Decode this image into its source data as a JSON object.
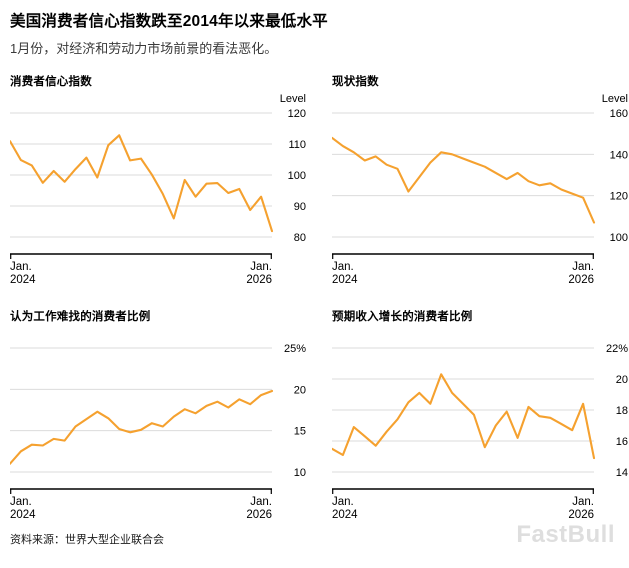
{
  "header": {
    "title": "美国消费者信心指数跌至2014年以来最低水平",
    "subtitle": "1月份，对经济和劳动力市场前景的看法恶化。"
  },
  "footer": {
    "source": "资料来源：世界大型企业联合会",
    "watermark": "FastBull"
  },
  "colors": {
    "line": "#F5A12F",
    "grid": "#DBDBDB",
    "axis": "#000000",
    "watermark": "#DEDEDE"
  },
  "chart_data": [
    {
      "type": "line",
      "title": "消费者信心指数",
      "ylabel": "Level",
      "ylim": [
        80,
        120
      ],
      "yticks": [
        120,
        110,
        100,
        90,
        80
      ],
      "ytick_labels": [
        "120",
        "110",
        "100",
        "90",
        "80"
      ],
      "x_start_label": [
        "Jan.",
        "2024"
      ],
      "x_end_label": [
        "Jan.",
        "2026"
      ],
      "values": [
        110.9,
        104.8,
        103.1,
        97.5,
        101.3,
        97.8,
        101.9,
        105.6,
        99.2,
        109.6,
        112.8,
        104.7,
        105.3,
        100.1,
        93.9,
        86.0,
        98.4,
        93.0,
        97.2,
        97.4,
        94.2,
        95.5,
        88.7,
        93.0,
        81.9
      ]
    },
    {
      "type": "line",
      "title": "现状指数",
      "ylabel": "Level",
      "ylim": [
        100,
        160
      ],
      "yticks": [
        160,
        140,
        120,
        100
      ],
      "ytick_labels": [
        "160",
        "140",
        "120",
        "100"
      ],
      "x_start_label": [
        "Jan.",
        "2024"
      ],
      "x_end_label": [
        "Jan.",
        "2026"
      ],
      "values": [
        148,
        144,
        141,
        137,
        139,
        135,
        133,
        122,
        129,
        136,
        141,
        140,
        138,
        136,
        134,
        131,
        128,
        131,
        127,
        125,
        126,
        123,
        121,
        119,
        107
      ]
    },
    {
      "type": "line",
      "title": "认为工作难找的消费者比例",
      "ylabel": "",
      "ylim": [
        10,
        25
      ],
      "yticks": [
        25,
        20,
        15,
        10
      ],
      "ytick_labels": [
        "25%",
        "20",
        "15",
        "10"
      ],
      "x_start_label": [
        "Jan.",
        "2024"
      ],
      "x_end_label": [
        "Jan.",
        "2026"
      ],
      "values": [
        11.0,
        12.5,
        13.3,
        13.2,
        14.0,
        13.8,
        15.5,
        16.4,
        17.3,
        16.5,
        15.2,
        14.8,
        15.1,
        15.9,
        15.5,
        16.7,
        17.6,
        17.1,
        18.0,
        18.5,
        17.8,
        18.8,
        18.2,
        19.3,
        19.8
      ]
    },
    {
      "type": "line",
      "title": "预期收入增长的消费者比例",
      "ylabel": "",
      "ylim": [
        14,
        22
      ],
      "yticks": [
        22,
        20,
        18,
        16,
        14
      ],
      "ytick_labels": [
        "22%",
        "20",
        "18",
        "16",
        "14"
      ],
      "x_start_label": [
        "Jan.",
        "2024"
      ],
      "x_end_label": [
        "Jan.",
        "2026"
      ],
      "values": [
        15.5,
        15.1,
        16.9,
        16.3,
        15.7,
        16.6,
        17.4,
        18.5,
        19.1,
        18.4,
        20.3,
        19.1,
        18.4,
        17.7,
        15.6,
        17.0,
        17.9,
        16.2,
        18.2,
        17.6,
        17.5,
        17.1,
        16.7,
        18.4,
        14.9
      ]
    }
  ]
}
